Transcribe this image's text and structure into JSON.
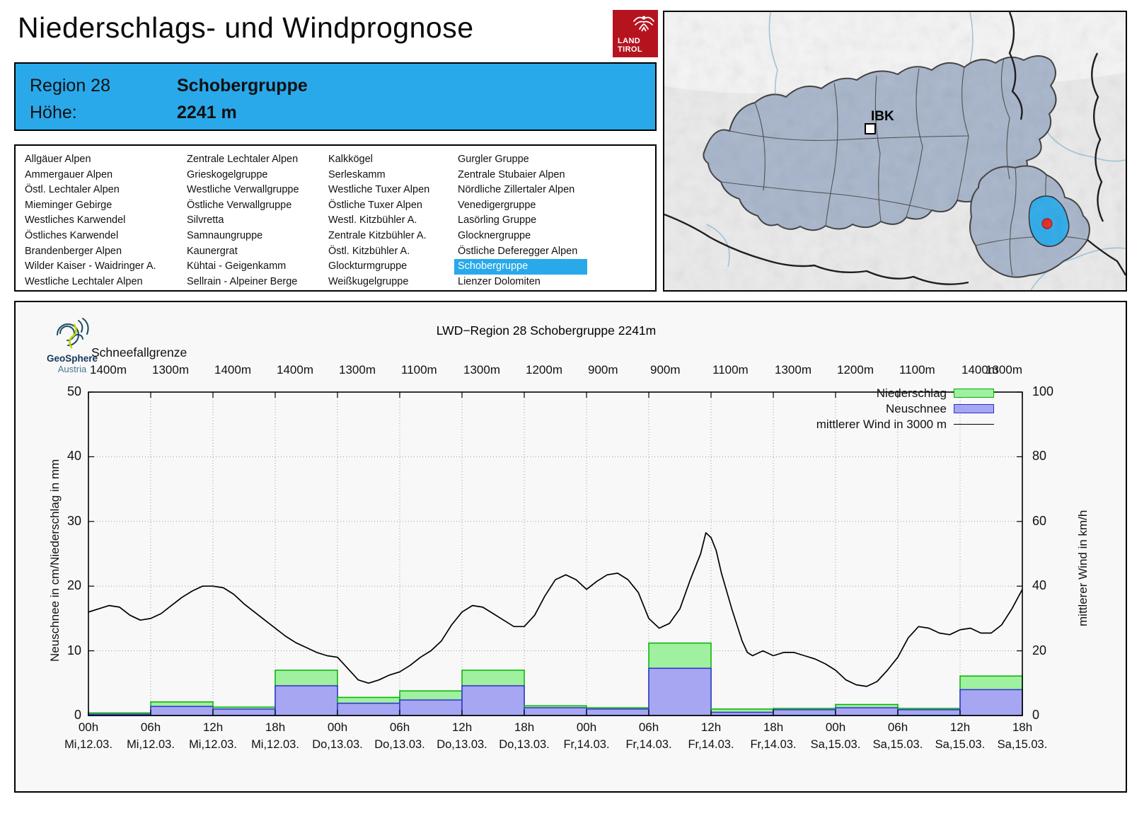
{
  "header": {
    "title": "Niederschlags- und Windprognose",
    "logo": {
      "line1": "LAND",
      "line2": "TIROL"
    }
  },
  "info_box": {
    "region_label": "Region 28",
    "region_name": "Schobergruppe",
    "altitude_label": "Höhe:",
    "altitude_value": "2241 m"
  },
  "region_list": {
    "selected": "Schobergruppe",
    "columns": [
      [
        "Allgäuer Alpen",
        "Ammergauer Alpen",
        "Östl. Lechtaler Alpen",
        "Mieminger Gebirge",
        "Westliches Karwendel",
        "Östliches Karwendel",
        "Brandenberger Alpen",
        "Wilder Kaiser - Waidringer A.",
        "Westliche Lechtaler Alpen"
      ],
      [
        "Zentrale Lechtaler Alpen",
        "Grieskogelgruppe",
        "Westliche Verwallgruppe",
        "Östliche Verwallgruppe",
        "Silvretta",
        "Samnaungruppe",
        "Kaunergrat",
        "Kühtai - Geigenkamm",
        "Sellrain - Alpeiner Berge"
      ],
      [
        "Kalkkögel",
        "Serleskamm",
        "Westliche Tuxer Alpen",
        "Östliche Tuxer Alpen",
        "Westl. Kitzbühler A.",
        "Zentrale Kitzbühler A.",
        "Östl. Kitzbühler A.",
        "Glockturmgruppe",
        "Weißkugelgruppe"
      ],
      [
        "Gurgler Gruppe",
        "Zentrale Stubaier Alpen",
        "Nördliche Zillertaler Alpen",
        "Venedigergruppe",
        "Lasörling Gruppe",
        "Glocknergruppe",
        "Östliche Deferegger Alpen",
        "Schobergruppe",
        "Lienzer Dolomiten"
      ]
    ]
  },
  "map": {
    "city_label": "IBK",
    "highlight_color": "#29a9ea",
    "marker_color": "#e02520"
  },
  "chart": {
    "provider": {
      "name": "GeoSphere",
      "sub": "Austria"
    },
    "title": "LWD−Region 28 Schobergruppe 2241m",
    "snowline_label": "Schneefallgrenze",
    "legend": [
      {
        "label": "Niederschlag",
        "type": "box",
        "fill": "#9ff09f",
        "stroke": "#00b400"
      },
      {
        "label": "Neuschnee",
        "type": "box",
        "fill": "#a6a6f2",
        "stroke": "#3030d0"
      },
      {
        "label": "mittlerer Wind in 3000 m",
        "type": "line",
        "stroke": "#000000"
      }
    ]
  },
  "chart_data": {
    "type": "bar+line",
    "title": "LWD−Region 28 Schobergruppe 2241m",
    "snowline_m": [
      "1400m",
      "1300m",
      "1400m",
      "1400m",
      "1300m",
      "1100m",
      "1300m",
      "1200m",
      "900m",
      "900m",
      "1100m",
      "1300m",
      "1200m",
      "1100m",
      "1400m",
      "1300m"
    ],
    "x_ticks": [
      {
        "time": "00h",
        "date": "Mi,12.03."
      },
      {
        "time": "06h",
        "date": "Mi,12.03."
      },
      {
        "time": "12h",
        "date": "Mi,12.03."
      },
      {
        "time": "18h",
        "date": "Mi,12.03."
      },
      {
        "time": "00h",
        "date": "Do,13.03."
      },
      {
        "time": "06h",
        "date": "Do,13.03."
      },
      {
        "time": "12h",
        "date": "Do,13.03."
      },
      {
        "time": "18h",
        "date": "Do,13.03."
      },
      {
        "time": "00h",
        "date": "Fr,14.03."
      },
      {
        "time": "06h",
        "date": "Fr,14.03."
      },
      {
        "time": "12h",
        "date": "Fr,14.03."
      },
      {
        "time": "18h",
        "date": "Fr,14.03."
      },
      {
        "time": "00h",
        "date": "Sa,15.03."
      },
      {
        "time": "06h",
        "date": "Sa,15.03."
      },
      {
        "time": "12h",
        "date": "Sa,15.03."
      },
      {
        "time": "18h",
        "date": "Sa,15.03."
      }
    ],
    "y_left": {
      "label": "Neuschnee in cm/Niederschlag in mm",
      "range": [
        0,
        50
      ],
      "ticks": [
        0,
        10,
        20,
        30,
        40,
        50
      ]
    },
    "y_right": {
      "label": "mittlerer Wind in km/h",
      "range": [
        0,
        100
      ],
      "ticks": [
        0,
        20,
        40,
        60,
        80,
        100
      ]
    },
    "bars": {
      "interval_hours": 6,
      "niederschlag_mm": [
        0.4,
        2.1,
        1.3,
        7.0,
        2.8,
        3.8,
        7.0,
        1.5,
        1.2,
        11.2,
        1.0,
        1.1,
        1.7,
        1.1,
        6.1
      ],
      "neuschnee_cm": [
        0.2,
        1.4,
        1.0,
        4.6,
        1.9,
        2.4,
        4.6,
        1.2,
        1.0,
        7.3,
        0.5,
        0.9,
        1.2,
        0.9,
        4.0
      ]
    },
    "wind_points_kmh": [
      [
        0,
        32
      ],
      [
        1,
        33
      ],
      [
        2,
        34
      ],
      [
        3,
        33.5
      ],
      [
        4,
        31
      ],
      [
        5,
        29.5
      ],
      [
        6,
        30
      ],
      [
        7,
        31.5
      ],
      [
        8,
        34
      ],
      [
        9,
        36.5
      ],
      [
        10,
        38.5
      ],
      [
        11,
        40
      ],
      [
        12,
        40
      ],
      [
        13,
        39.5
      ],
      [
        14,
        37.5
      ],
      [
        15,
        34.5
      ],
      [
        16,
        32
      ],
      [
        17,
        29.5
      ],
      [
        18,
        27
      ],
      [
        19,
        24.5
      ],
      [
        20,
        22.5
      ],
      [
        21,
        21
      ],
      [
        22,
        19.5
      ],
      [
        23,
        18.5
      ],
      [
        24,
        18
      ],
      [
        25,
        14.5
      ],
      [
        26,
        11
      ],
      [
        27,
        10
      ],
      [
        28,
        11
      ],
      [
        29,
        12.5
      ],
      [
        30,
        13.5
      ],
      [
        31,
        15.5
      ],
      [
        32,
        18
      ],
      [
        33,
        20
      ],
      [
        34,
        23
      ],
      [
        35,
        28
      ],
      [
        36,
        32
      ],
      [
        37,
        34
      ],
      [
        38,
        33.5
      ],
      [
        39,
        31.5
      ],
      [
        40,
        29.5
      ],
      [
        41,
        27.5
      ],
      [
        42,
        27.5
      ],
      [
        43,
        31
      ],
      [
        44,
        37
      ],
      [
        45,
        42
      ],
      [
        46,
        43.5
      ],
      [
        47,
        42
      ],
      [
        48,
        39
      ],
      [
        49,
        41.5
      ],
      [
        50,
        43.5
      ],
      [
        51,
        44
      ],
      [
        52,
        42
      ],
      [
        53,
        38
      ],
      [
        54,
        30
      ],
      [
        55,
        27
      ],
      [
        56,
        28.5
      ],
      [
        57,
        33
      ],
      [
        58,
        42
      ],
      [
        59,
        50
      ],
      [
        59.5,
        56.5
      ],
      [
        60,
        55
      ],
      [
        60.5,
        51
      ],
      [
        61,
        44
      ],
      [
        62,
        33
      ],
      [
        63,
        23
      ],
      [
        63.5,
        19.5
      ],
      [
        64,
        18.5
      ],
      [
        65,
        20
      ],
      [
        66,
        18.5
      ],
      [
        67,
        19.5
      ],
      [
        68,
        19.5
      ],
      [
        69,
        18.5
      ],
      [
        70,
        17.5
      ],
      [
        71,
        16
      ],
      [
        72,
        14
      ],
      [
        73,
        11
      ],
      [
        74,
        9.5
      ],
      [
        75,
        9
      ],
      [
        76,
        10.5
      ],
      [
        77,
        14
      ],
      [
        78,
        18
      ],
      [
        79,
        24
      ],
      [
        80,
        27.5
      ],
      [
        81,
        27
      ],
      [
        82,
        25.5
      ],
      [
        83,
        25
      ],
      [
        84,
        26.5
      ],
      [
        85,
        27
      ],
      [
        86,
        25.5
      ],
      [
        87,
        25.5
      ],
      [
        88,
        28
      ],
      [
        89,
        33
      ],
      [
        90,
        39
      ]
    ]
  }
}
